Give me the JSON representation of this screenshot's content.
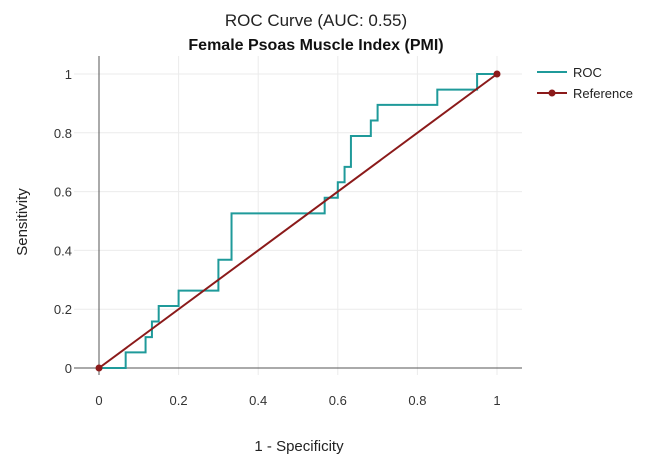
{
  "chart_data": {
    "type": "line",
    "title": "ROC Curve (AUC: 0.55)",
    "subtitle": "Female Psoas Muscle Index (PMI)",
    "xlabel": "1 - Specificity",
    "ylabel": "Sensitivity",
    "xlim": [
      -0.05,
      1.05
    ],
    "ylim": [
      -0.0,
      1.05
    ],
    "x_ticks": [
      0,
      0.2,
      0.4,
      0.6,
      0.8,
      1
    ],
    "x_tick_labels": [
      "0",
      "0.2",
      "0.4",
      "0.6",
      "0.8",
      "1"
    ],
    "y_ticks": [
      0,
      0.2,
      0.4,
      0.6,
      0.8,
      1
    ],
    "y_tick_labels": [
      "0",
      "0.2",
      "0.4",
      "0.6",
      "0.8",
      "1"
    ],
    "grid": true,
    "legend_position": "right",
    "series": [
      {
        "name": "ROC",
        "color": "#1f9a9a",
        "mode": "lines",
        "x": [
          0,
          0.067,
          0.067,
          0.117,
          0.117,
          0.133,
          0.133,
          0.15,
          0.15,
          0.2,
          0.2,
          0.3,
          0.3,
          0.333,
          0.333,
          0.567,
          0.567,
          0.6,
          0.6,
          0.617,
          0.617,
          0.633,
          0.633,
          0.683,
          0.683,
          0.7,
          0.7,
          0.85,
          0.85,
          0.95,
          0.95,
          1
        ],
        "y": [
          0,
          0,
          0.053,
          0.053,
          0.105,
          0.105,
          0.158,
          0.158,
          0.211,
          0.211,
          0.263,
          0.263,
          0.368,
          0.368,
          0.526,
          0.526,
          0.579,
          0.579,
          0.632,
          0.632,
          0.684,
          0.684,
          0.789,
          0.789,
          0.842,
          0.842,
          0.895,
          0.895,
          0.947,
          0.947,
          1,
          1
        ]
      },
      {
        "name": "Reference",
        "color": "#8b1a1a",
        "mode": "lines+markers",
        "x": [
          0,
          1
        ],
        "y": [
          0,
          1
        ]
      }
    ]
  }
}
